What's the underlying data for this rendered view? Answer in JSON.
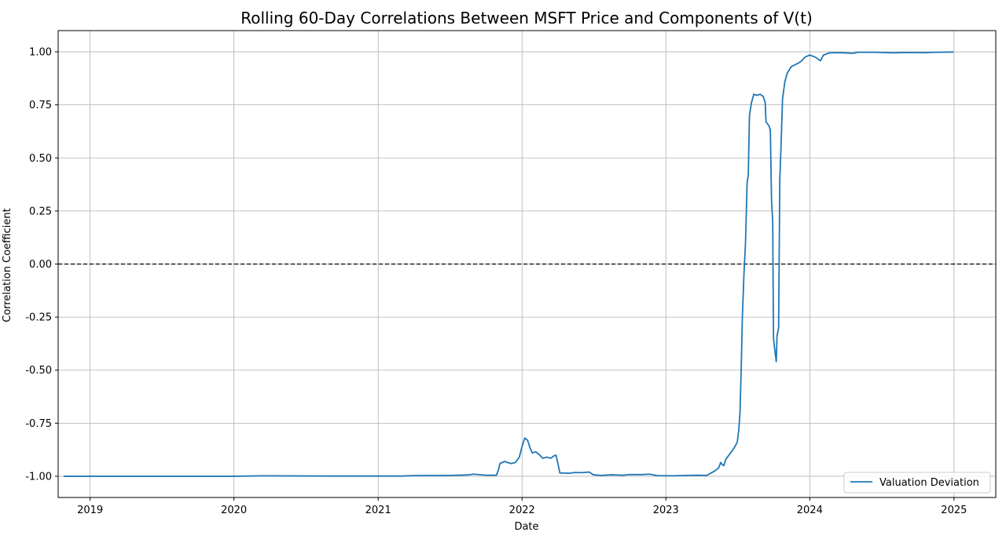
{
  "chart_data": {
    "type": "line",
    "title": "Rolling 60-Day Correlations Between MSFT Price and Components of V(t)",
    "xlabel": "Date",
    "ylabel": "Correlation Coefficient",
    "x_ticks": [
      "2019",
      "2020",
      "2021",
      "2022",
      "2023",
      "2024",
      "2025"
    ],
    "y_ticks": [
      "-1.00",
      "-0.75",
      "-0.50",
      "-0.25",
      "0.00",
      "0.25",
      "0.50",
      "0.75",
      "1.00"
    ],
    "xlim": [
      "2018-10-12",
      "2025-04-17"
    ],
    "ylim": [
      -1.1,
      1.1
    ],
    "grid": true,
    "legend_position": "lower right",
    "reference_line": {
      "y": 0,
      "style": "dashed",
      "color": "#000000"
    },
    "series": [
      {
        "name": "Valuation Deviation",
        "color": "#1f77b4",
        "points": [
          [
            "2018-10-26",
            -1.0
          ],
          [
            "2019-06-01",
            -1.0
          ],
          [
            "2020-01-01",
            -1.0
          ],
          [
            "2020-03-15",
            -0.998
          ],
          [
            "2020-09-01",
            -0.999
          ],
          [
            "2021-03-01",
            -0.999
          ],
          [
            "2021-04-01",
            -0.997
          ],
          [
            "2021-07-01",
            -0.996
          ],
          [
            "2021-08-15",
            -0.994
          ],
          [
            "2021-09-01",
            -0.99
          ],
          [
            "2021-10-01",
            -0.995
          ],
          [
            "2021-10-28",
            -0.995
          ],
          [
            "2021-11-02",
            -0.97
          ],
          [
            "2021-11-06",
            -0.94
          ],
          [
            "2021-11-12",
            -0.935
          ],
          [
            "2021-11-18",
            -0.93
          ],
          [
            "2021-11-25",
            -0.935
          ],
          [
            "2021-12-05",
            -0.94
          ],
          [
            "2021-12-15",
            -0.935
          ],
          [
            "2021-12-25",
            -0.91
          ],
          [
            "2022-01-01",
            -0.86
          ],
          [
            "2022-01-08",
            -0.82
          ],
          [
            "2022-01-15",
            -0.83
          ],
          [
            "2022-01-22",
            -0.87
          ],
          [
            "2022-01-27",
            -0.89
          ],
          [
            "2022-02-05",
            -0.885
          ],
          [
            "2022-02-15",
            -0.9
          ],
          [
            "2022-02-22",
            -0.915
          ],
          [
            "2022-03-05",
            -0.91
          ],
          [
            "2022-03-15",
            -0.915
          ],
          [
            "2022-03-22",
            -0.905
          ],
          [
            "2022-03-28",
            -0.9
          ],
          [
            "2022-04-02",
            -0.94
          ],
          [
            "2022-04-07",
            -0.985
          ],
          [
            "2022-04-20",
            -0.985
          ],
          [
            "2022-05-01",
            -0.986
          ],
          [
            "2022-05-15",
            -0.982
          ],
          [
            "2022-06-01",
            -0.983
          ],
          [
            "2022-06-20",
            -0.98
          ],
          [
            "2022-07-01",
            -0.993
          ],
          [
            "2022-07-20",
            -0.996
          ],
          [
            "2022-08-15",
            -0.993
          ],
          [
            "2022-09-15",
            -0.995
          ],
          [
            "2022-10-01",
            -0.992
          ],
          [
            "2022-11-01",
            -0.992
          ],
          [
            "2022-11-20",
            -0.99
          ],
          [
            "2022-12-10",
            -0.997
          ],
          [
            "2023-01-20",
            -0.998
          ],
          [
            "2023-02-20",
            -0.996
          ],
          [
            "2023-03-20",
            -0.995
          ],
          [
            "2023-04-15",
            -0.996
          ],
          [
            "2023-04-25",
            -0.985
          ],
          [
            "2023-05-05",
            -0.975
          ],
          [
            "2023-05-15",
            -0.96
          ],
          [
            "2023-05-20",
            -0.935
          ],
          [
            "2023-05-24",
            -0.945
          ],
          [
            "2023-05-28",
            -0.95
          ],
          [
            "2023-06-02",
            -0.92
          ],
          [
            "2023-06-12",
            -0.895
          ],
          [
            "2023-06-22",
            -0.87
          ],
          [
            "2023-07-01",
            -0.84
          ],
          [
            "2023-07-05",
            -0.78
          ],
          [
            "2023-07-08",
            -0.7
          ],
          [
            "2023-07-11",
            -0.5
          ],
          [
            "2023-07-14",
            -0.25
          ],
          [
            "2023-07-18",
            -0.05
          ],
          [
            "2023-07-22",
            0.1
          ],
          [
            "2023-07-26",
            0.38
          ],
          [
            "2023-07-29",
            0.42
          ],
          [
            "2023-08-01",
            0.7
          ],
          [
            "2023-08-06",
            0.76
          ],
          [
            "2023-08-12",
            0.8
          ],
          [
            "2023-08-20",
            0.795
          ],
          [
            "2023-08-28",
            0.8
          ],
          [
            "2023-09-05",
            0.79
          ],
          [
            "2023-09-10",
            0.76
          ],
          [
            "2023-09-12",
            0.67
          ],
          [
            "2023-09-16",
            0.66
          ],
          [
            "2023-09-20",
            0.65
          ],
          [
            "2023-09-23",
            0.63
          ],
          [
            "2023-09-26",
            0.3
          ],
          [
            "2023-09-29",
            0.2
          ],
          [
            "2023-10-01",
            -0.35
          ],
          [
            "2023-10-04",
            -0.4
          ],
          [
            "2023-10-08",
            -0.46
          ],
          [
            "2023-10-10",
            -0.34
          ],
          [
            "2023-10-14",
            -0.3
          ],
          [
            "2023-10-17",
            0.4
          ],
          [
            "2023-10-20",
            0.55
          ],
          [
            "2023-10-24",
            0.78
          ],
          [
            "2023-10-30",
            0.86
          ],
          [
            "2023-11-05",
            0.9
          ],
          [
            "2023-11-15",
            0.93
          ],
          [
            "2023-12-01",
            0.945
          ],
          [
            "2023-12-10",
            0.955
          ],
          [
            "2023-12-20",
            0.975
          ],
          [
            "2024-01-01",
            0.985
          ],
          [
            "2024-01-15",
            0.975
          ],
          [
            "2024-01-28",
            0.958
          ],
          [
            "2024-02-05",
            0.985
          ],
          [
            "2024-02-20",
            0.995
          ],
          [
            "2024-03-15",
            0.996
          ],
          [
            "2024-04-20",
            0.993
          ],
          [
            "2024-05-01",
            0.998
          ],
          [
            "2024-06-15",
            0.998
          ],
          [
            "2024-08-01",
            0.995
          ],
          [
            "2024-09-01",
            0.997
          ],
          [
            "2024-10-15",
            0.996
          ],
          [
            "2024-11-15",
            0.998
          ],
          [
            "2024-12-31",
            0.999
          ]
        ]
      }
    ]
  }
}
